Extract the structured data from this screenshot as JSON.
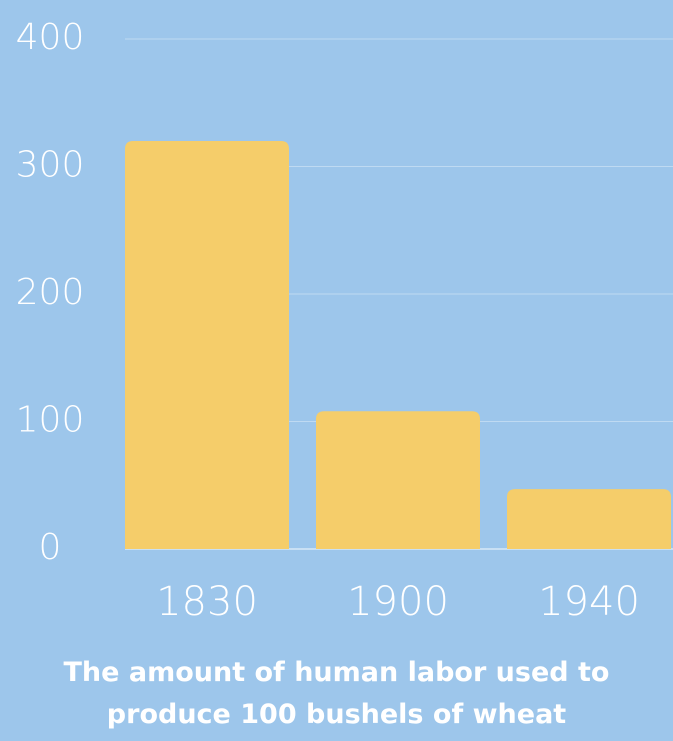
{
  "chart_data": {
    "type": "bar",
    "title": "The amount of human labor used to produce 100 bushels of wheat",
    "categories": [
      "1830",
      "1900",
      "1940"
    ],
    "values": [
      320,
      108,
      47
    ],
    "color": "#f5cd6a",
    "ylim": [
      0,
      400
    ],
    "yticks": [
      0,
      100,
      200,
      300,
      400
    ],
    "grid": true
  }
}
